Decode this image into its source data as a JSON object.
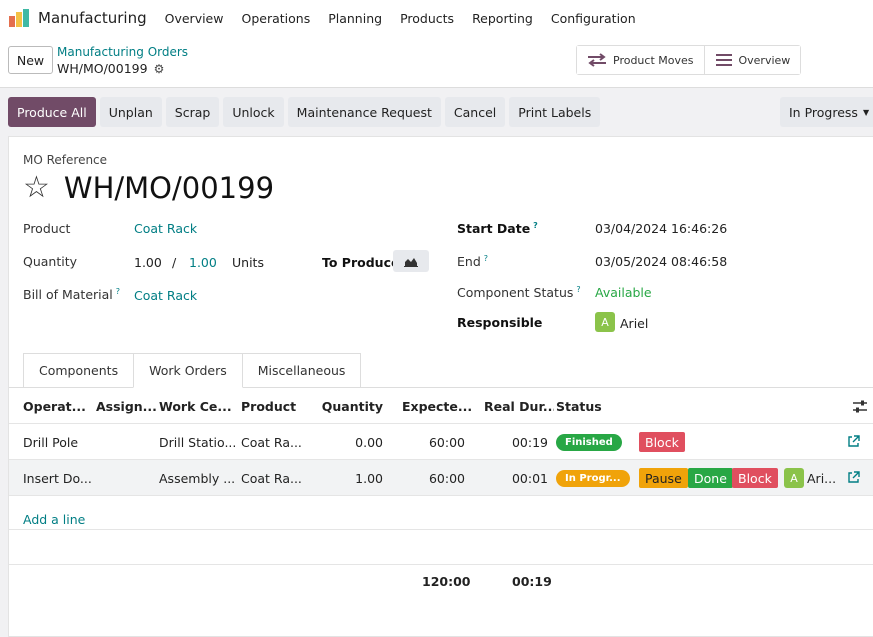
{
  "app": {
    "name": "Manufacturing",
    "brand_colors": [
      "#e46f4e",
      "#f4c145",
      "#3fb9a4"
    ]
  },
  "menu": [
    "Overview",
    "Operations",
    "Planning",
    "Products",
    "Reporting",
    "Configuration"
  ],
  "control_panel": {
    "new_label": "New",
    "breadcrumb_parent": "Manufacturing Orders",
    "breadcrumb_current": "WH/MO/00199",
    "smart_buttons": [
      {
        "label": "Product Moves",
        "icon": "transfer-icon"
      },
      {
        "label": "Overview",
        "icon": "list-icon"
      }
    ]
  },
  "actions": [
    "Produce All",
    "Unplan",
    "Scrap",
    "Unlock",
    "Maintenance Request",
    "Cancel",
    "Print Labels"
  ],
  "status_label": "In Progress",
  "form": {
    "mo_ref_label": "MO Reference",
    "mo_name": "WH/MO/00199",
    "product_label": "Product",
    "product_value": "Coat Rack",
    "quantity_label": "Quantity",
    "quantity_produced": "1.00",
    "quantity_sep": "/",
    "quantity_total": "1.00",
    "uom": "Units",
    "to_produce_label": "To Produce",
    "bom_label": "Bill of Material",
    "bom_value": "Coat Rack",
    "start_date_label": "Start Date",
    "start_date_value": "03/04/2024 16:46:26",
    "end_label": "End",
    "end_value": "03/05/2024 08:46:58",
    "component_status_label": "Component Status",
    "component_status_value": "Available",
    "responsible_label": "Responsible",
    "responsible_initial": "A",
    "responsible_name": "Ariel",
    "help_mark": "?"
  },
  "tabs": [
    "Components",
    "Work Orders",
    "Miscellaneous"
  ],
  "work_orders": {
    "columns": [
      "Operat...",
      "Assign...",
      "Work Ce...",
      "Product",
      "Quantity",
      "Expecte...",
      "Real Dur...",
      "Status"
    ],
    "rows": [
      {
        "operation": "Drill Pole",
        "assigned": "",
        "work_center": "Drill Statio...",
        "product": "Coat Ra...",
        "quantity": "0.00",
        "expected": "60:00",
        "real": "00:19",
        "status": "Finished",
        "buttons": [
          "Block"
        ]
      },
      {
        "operation": "Insert Do...",
        "assigned": "",
        "work_center": "Assembly ...",
        "product": "Coat Ra...",
        "quantity": "1.00",
        "expected": "60:00",
        "real": "00:01",
        "status": "In Progr...",
        "buttons": [
          "Pause",
          "Done",
          "Block"
        ],
        "user_initial": "A",
        "user_name": "Ari..."
      }
    ],
    "add_line": "Add a line",
    "totals": {
      "expected": "120:00",
      "real": "00:19"
    }
  }
}
